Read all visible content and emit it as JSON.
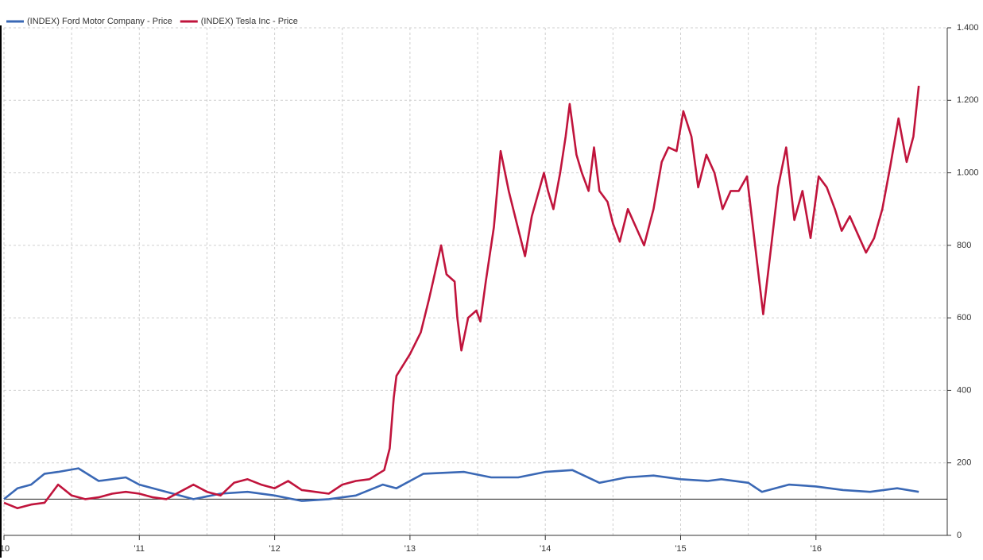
{
  "chart_data": {
    "type": "line",
    "series": [
      {
        "name": "(INDEX) Ford Motor Company - Price",
        "color": "#3a68b5",
        "x": [
          2010.0,
          2010.1,
          2010.2,
          2010.3,
          2010.4,
          2010.55,
          2010.7,
          2010.9,
          2011.0,
          2011.2,
          2011.4,
          2011.6,
          2011.8,
          2012.0,
          2012.2,
          2012.4,
          2012.6,
          2012.8,
          2012.9,
          2013.0,
          2013.1,
          2013.4,
          2013.6,
          2013.8,
          2014.0,
          2014.2,
          2014.4,
          2014.6,
          2014.8,
          2015.0,
          2015.2,
          2015.3,
          2015.5,
          2015.6,
          2015.8,
          2016.0,
          2016.2,
          2016.4,
          2016.6,
          2016.76
        ],
        "values": [
          100,
          130,
          140,
          170,
          175,
          185,
          150,
          160,
          140,
          120,
          100,
          115,
          120,
          110,
          95,
          100,
          110,
          140,
          130,
          150,
          170,
          175,
          160,
          160,
          175,
          180,
          145,
          160,
          165,
          155,
          150,
          155,
          145,
          120,
          140,
          135,
          125,
          120,
          130,
          120
        ]
      },
      {
        "name": "(INDEX) Tesla Inc - Price",
        "color": "#c0143c",
        "x": [
          2010.0,
          2010.1,
          2010.2,
          2010.3,
          2010.4,
          2010.5,
          2010.6,
          2010.7,
          2010.8,
          2010.9,
          2011.0,
          2011.1,
          2011.2,
          2011.3,
          2011.4,
          2011.5,
          2011.6,
          2011.7,
          2011.8,
          2011.9,
          2012.0,
          2012.1,
          2012.2,
          2012.3,
          2012.4,
          2012.5,
          2012.6,
          2012.7,
          2012.81,
          2012.85,
          2012.88,
          2012.9,
          2013.0,
          2013.08,
          2013.14,
          2013.17,
          2013.23,
          2013.27,
          2013.33,
          2013.35,
          2013.38,
          2013.43,
          2013.49,
          2013.52,
          2013.56,
          2013.62,
          2013.67,
          2013.73,
          2013.79,
          2013.85,
          2013.9,
          2013.96,
          2013.99,
          2014.02,
          2014.06,
          2014.11,
          2014.15,
          2014.18,
          2014.23,
          2014.27,
          2014.32,
          2014.36,
          2014.4,
          2014.46,
          2014.5,
          2014.55,
          2014.61,
          2014.67,
          2014.73,
          2014.8,
          2014.86,
          2014.91,
          2014.97,
          2015.02,
          2015.08,
          2015.13,
          2015.19,
          2015.25,
          2015.31,
          2015.37,
          2015.43,
          2015.49,
          2015.55,
          2015.61,
          2015.67,
          2015.72,
          2015.78,
          2015.84,
          2015.9,
          2015.96,
          2016.02,
          2016.08,
          2016.14,
          2016.19,
          2016.25,
          2016.31,
          2016.37,
          2016.43,
          2016.49,
          2016.55,
          2016.61,
          2016.67,
          2016.72,
          2016.76
        ],
        "values": [
          90,
          75,
          85,
          90,
          140,
          110,
          100,
          105,
          115,
          120,
          115,
          105,
          100,
          120,
          140,
          120,
          110,
          145,
          155,
          140,
          130,
          150,
          125,
          120,
          115,
          140,
          150,
          155,
          180,
          240,
          380,
          440,
          500,
          560,
          650,
          700,
          800,
          720,
          700,
          600,
          510,
          600,
          620,
          590,
          700,
          850,
          1060,
          950,
          860,
          770,
          880,
          960,
          1000,
          950,
          900,
          1000,
          1100,
          1190,
          1050,
          1000,
          950,
          1070,
          950,
          920,
          860,
          810,
          900,
          850,
          800,
          900,
          1030,
          1070,
          1060,
          1170,
          1100,
          960,
          1050,
          1000,
          900,
          950,
          950,
          990,
          800,
          610,
          800,
          960,
          1070,
          870,
          950,
          820,
          990,
          960,
          900,
          840,
          880,
          830,
          780,
          820,
          900,
          1020,
          1150,
          1030,
          1100,
          1240
        ]
      }
    ],
    "xlim": [
      2010,
      2016.97
    ],
    "xticks": [
      {
        "value": 2010,
        "label": "'10"
      },
      {
        "value": 2011,
        "label": "'11"
      },
      {
        "value": 2012,
        "label": "'12"
      },
      {
        "value": 2013,
        "label": "'13"
      },
      {
        "value": 2014,
        "label": "'14"
      },
      {
        "value": 2015,
        "label": "'15"
      },
      {
        "value": 2016,
        "label": "'16"
      }
    ],
    "xminor": [
      2010.5,
      2011.5,
      2012.5,
      2013.5,
      2014.5,
      2015.5,
      2016.5
    ],
    "ylim": [
      0,
      1400
    ],
    "yticks": [
      0,
      200,
      400,
      600,
      800,
      {
        "value": 1000,
        "label": "1.000"
      },
      {
        "value": 1200,
        "label": "1.200"
      },
      {
        "value": 1400,
        "label": "1.400"
      }
    ],
    "reference_line": 100,
    "grid": true,
    "legend": "top-left"
  }
}
